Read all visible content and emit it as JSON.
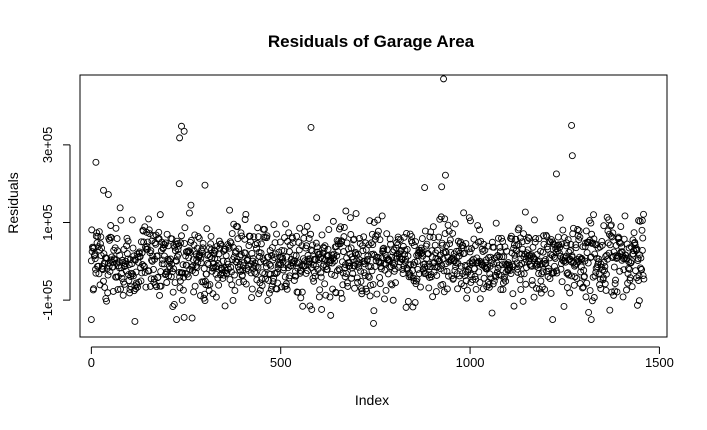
{
  "chart_data": {
    "type": "scatter",
    "title": "Residuals of Garage Area",
    "xlabel": "Index",
    "ylabel": "Residuals",
    "xlim": [
      -30,
      1520
    ],
    "ylim": [
      -195000,
      480000
    ],
    "x_ticks": [
      {
        "value": 0,
        "label": "0"
      },
      {
        "value": 500,
        "label": "500"
      },
      {
        "value": 1000,
        "label": "1000"
      },
      {
        "value": 1500,
        "label": "1500"
      }
    ],
    "y_ticks": [
      {
        "value": -100000,
        "label": "-1e+05"
      },
      {
        "value": 100000,
        "label": "1e+05"
      },
      {
        "value": 300000,
        "label": "3e+05"
      }
    ],
    "grid": false,
    "legend": "none",
    "marker": "open-circle",
    "color": "#000000",
    "n_points": 1460,
    "highlighted_points": [
      {
        "x": 0,
        "y": -150000
      },
      {
        "x": 12,
        "y": 255000
      },
      {
        "x": 32,
        "y": 183000
      },
      {
        "x": 45,
        "y": 172000
      },
      {
        "x": 115,
        "y": -155000
      },
      {
        "x": 225,
        "y": -150000
      },
      {
        "x": 233,
        "y": 318000
      },
      {
        "x": 238,
        "y": 348000
      },
      {
        "x": 245,
        "y": 335000
      },
      {
        "x": 232,
        "y": 200000
      },
      {
        "x": 300,
        "y": 196000
      },
      {
        "x": 580,
        "y": 345000
      },
      {
        "x": 745,
        "y": -160000
      },
      {
        "x": 930,
        "y": 470000
      },
      {
        "x": 935,
        "y": 222000
      },
      {
        "x": 925,
        "y": 192000
      },
      {
        "x": 880,
        "y": 190000
      },
      {
        "x": 1218,
        "y": -150000
      },
      {
        "x": 1228,
        "y": 225000
      },
      {
        "x": 1268,
        "y": 350000
      },
      {
        "x": 1270,
        "y": 272000
      },
      {
        "x": 1320,
        "y": -150000
      },
      {
        "x": 1445,
        "y": 105000
      },
      {
        "x": 1455,
        "y": 105000
      }
    ]
  }
}
